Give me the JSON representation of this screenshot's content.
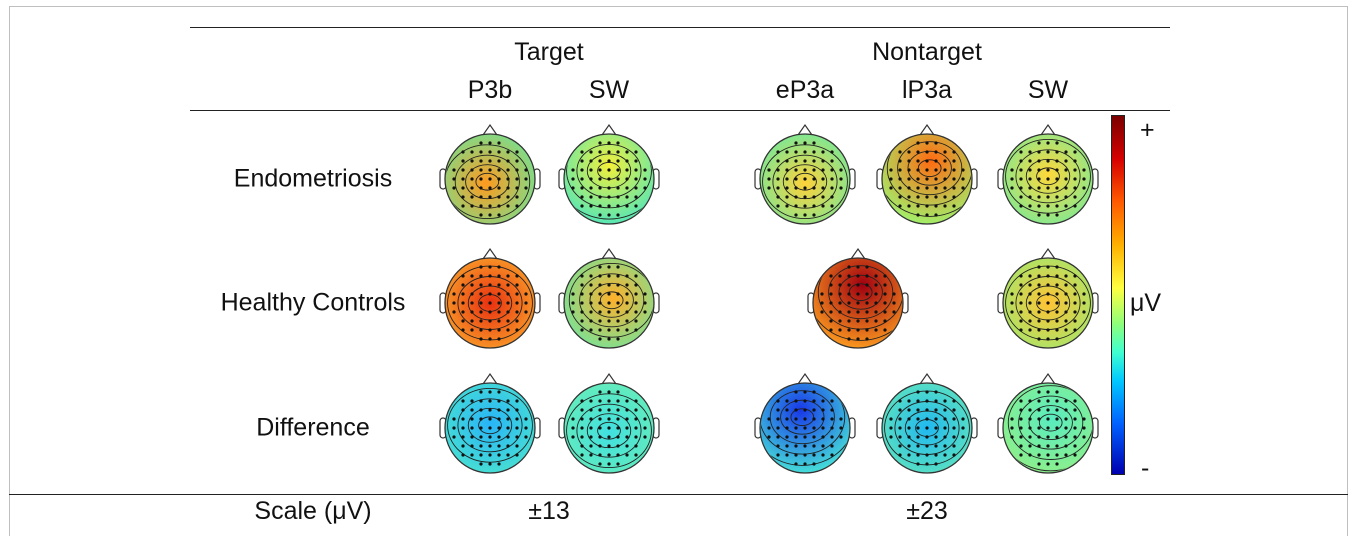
{
  "header": {
    "groups": [
      "Target",
      "Nontarget"
    ],
    "components": [
      "P3b",
      "SW",
      "eP3a",
      "lP3a",
      "SW"
    ]
  },
  "rows": [
    "Endometriosis",
    "Healthy Controls",
    "Difference"
  ],
  "colorbar": {
    "top_label": "+",
    "unit_label": "μV",
    "bottom_label": "-",
    "colors": [
      "#7a0000",
      "#d50000",
      "#ff5a00",
      "#ffb000",
      "#ffff40",
      "#8fff7a",
      "#40ffd0",
      "#00c8ff",
      "#0060ff",
      "#0000b0"
    ]
  },
  "scale": {
    "label": "Scale (μV)",
    "target_value": "±13",
    "nontarget_value": "±23"
  },
  "maps": [
    {
      "row": 0,
      "col": 0,
      "center": "#ff9a1e",
      "edge": "#58f0a8",
      "hot": [
        0.45,
        0.55
      ]
    },
    {
      "row": 0,
      "col": 1,
      "center": "#f3f03a",
      "edge": "#3fe6c8",
      "hot": [
        0.5,
        0.35
      ]
    },
    {
      "row": 0,
      "col": 2,
      "center": "#ffd23a",
      "edge": "#55eeb0",
      "hot": [
        0.5,
        0.55
      ]
    },
    {
      "row": 0,
      "col": 3,
      "center": "#ff6a10",
      "edge": "#9cf870",
      "hot": [
        0.55,
        0.3
      ]
    },
    {
      "row": 0,
      "col": 4,
      "center": "#ffd83a",
      "edge": "#60eeaa",
      "hot": [
        0.5,
        0.45
      ]
    },
    {
      "row": 1,
      "col": 0,
      "center": "#e83010",
      "edge": "#ffc030",
      "hot": [
        0.5,
        0.5
      ]
    },
    {
      "row": 1,
      "col": 1,
      "center": "#ffb02a",
      "edge": "#58eeb0",
      "hot": [
        0.55,
        0.45
      ]
    },
    {
      "row": 1,
      "col": 3,
      "center": "#a00010",
      "edge": "#ffa020",
      "hot": [
        0.55,
        0.3
      ],
      "shift": -69
    },
    {
      "row": 1,
      "col": 4,
      "center": "#ffc434",
      "edge": "#8cf07c",
      "hot": [
        0.5,
        0.5
      ]
    },
    {
      "row": 2,
      "col": 0,
      "center": "#28b4f8",
      "edge": "#50ecc8",
      "hot": [
        0.5,
        0.45
      ]
    },
    {
      "row": 2,
      "col": 1,
      "center": "#40e0e0",
      "edge": "#70f0b0",
      "hot": [
        0.5,
        0.55
      ]
    },
    {
      "row": 2,
      "col": 2,
      "center": "#1838e8",
      "edge": "#48e8d8",
      "hot": [
        0.45,
        0.3
      ]
    },
    {
      "row": 2,
      "col": 3,
      "center": "#20b8f0",
      "edge": "#70f0b0",
      "hot": [
        0.5,
        0.5
      ]
    },
    {
      "row": 2,
      "col": 4,
      "center": "#58ecc0",
      "edge": "#98f080",
      "hot": [
        0.55,
        0.4
      ]
    }
  ]
}
